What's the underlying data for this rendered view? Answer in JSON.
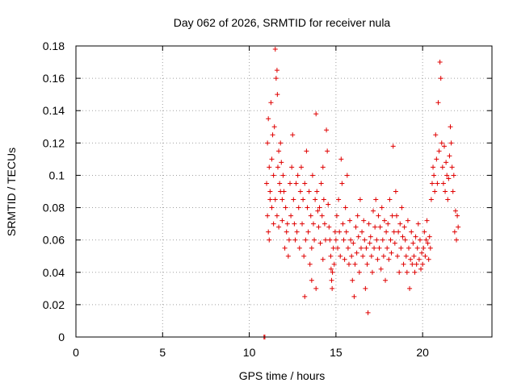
{
  "chart_data": {
    "type": "scatter",
    "title": "Day 062 of 2026, SRMTID for receiver nula",
    "xlabel": "GPS time / hours",
    "ylabel": "SRMTID / TECUs",
    "xlim": [
      0,
      24
    ],
    "ylim": [
      0,
      0.18
    ],
    "xticks": [
      0,
      5,
      10,
      15,
      20
    ],
    "yticks": [
      0,
      0.02,
      0.04,
      0.06,
      0.08,
      0.1,
      0.12,
      0.14,
      0.16,
      0.18
    ],
    "xtick_labels": [
      "0",
      "5",
      "10",
      "15",
      "20"
    ],
    "ytick_labels": [
      "0",
      "0.02",
      "0.04",
      "0.06",
      "0.08",
      "0.1",
      "0.12",
      "0.14",
      "0.16",
      "0.18"
    ],
    "grid": true,
    "marker": "+",
    "series": [
      {
        "name": "SRMTID",
        "color": "#e00000",
        "points": [
          [
            10.85,
            0.0
          ],
          [
            10.9,
            0.0
          ],
          [
            11.0,
            0.095
          ],
          [
            11.05,
            0.12
          ],
          [
            11.1,
            0.135
          ],
          [
            11.15,
            0.105
          ],
          [
            11.2,
            0.085
          ],
          [
            11.25,
            0.145
          ],
          [
            11.3,
            0.11
          ],
          [
            11.35,
            0.125
          ],
          [
            11.4,
            0.1
          ],
          [
            11.45,
            0.13
          ],
          [
            11.5,
            0.178
          ],
          [
            11.55,
            0.16
          ],
          [
            11.6,
            0.165
          ],
          [
            11.62,
            0.15
          ],
          [
            11.65,
            0.105
          ],
          [
            11.7,
            0.115
          ],
          [
            11.75,
            0.095
          ],
          [
            11.8,
            0.12
          ],
          [
            11.85,
            0.108
          ],
          [
            11.9,
            0.085
          ],
          [
            11.95,
            0.1
          ],
          [
            11.05,
            0.075
          ],
          [
            11.1,
            0.065
          ],
          [
            11.15,
            0.06
          ],
          [
            11.2,
            0.09
          ],
          [
            11.3,
            0.08
          ],
          [
            11.4,
            0.07
          ],
          [
            11.5,
            0.085
          ],
          [
            11.6,
            0.075
          ],
          [
            11.7,
            0.068
          ],
          [
            11.8,
            0.09
          ],
          [
            11.9,
            0.072
          ],
          [
            12.0,
            0.09
          ],
          [
            12.05,
            0.055
          ],
          [
            12.1,
            0.08
          ],
          [
            12.15,
            0.065
          ],
          [
            12.2,
            0.07
          ],
          [
            12.25,
            0.05
          ],
          [
            12.3,
            0.06
          ],
          [
            12.35,
            0.095
          ],
          [
            12.4,
            0.075
          ],
          [
            12.45,
            0.105
          ],
          [
            12.5,
            0.125
          ],
          [
            12.55,
            0.085
          ],
          [
            12.6,
            0.07
          ],
          [
            12.65,
            0.06
          ],
          [
            12.7,
            0.095
          ],
          [
            12.75,
            0.065
          ],
          [
            12.8,
            0.1
          ],
          [
            12.85,
            0.08
          ],
          [
            12.9,
            0.055
          ],
          [
            12.95,
            0.09
          ],
          [
            13.0,
            0.105
          ],
          [
            13.05,
            0.07
          ],
          [
            13.1,
            0.085
          ],
          [
            13.15,
            0.05
          ],
          [
            13.2,
            0.095
          ],
          [
            13.25,
            0.06
          ],
          [
            13.3,
            0.115
          ],
          [
            13.35,
            0.08
          ],
          [
            13.4,
            0.065
          ],
          [
            13.45,
            0.09
          ],
          [
            13.5,
            0.045
          ],
          [
            13.55,
            0.075
          ],
          [
            13.6,
            0.055
          ],
          [
            13.65,
            0.1
          ],
          [
            13.7,
            0.07
          ],
          [
            13.75,
            0.06
          ],
          [
            13.8,
            0.085
          ],
          [
            13.85,
            0.138
          ],
          [
            13.9,
            0.09
          ],
          [
            13.95,
            0.078
          ],
          [
            14.0,
            0.068
          ],
          [
            14.05,
            0.08
          ],
          [
            14.1,
            0.058
          ],
          [
            14.15,
            0.095
          ],
          [
            14.2,
            0.075
          ],
          [
            14.25,
            0.105
          ],
          [
            14.3,
            0.085
          ],
          [
            14.35,
            0.07
          ],
          [
            14.4,
            0.06
          ],
          [
            14.45,
            0.128
          ],
          [
            14.5,
            0.115
          ],
          [
            14.55,
            0.082
          ],
          [
            14.6,
            0.068
          ],
          [
            14.65,
            0.06
          ],
          [
            14.7,
            0.05
          ],
          [
            14.72,
            0.042
          ],
          [
            14.75,
            0.035
          ],
          [
            14.78,
            0.03
          ],
          [
            14.8,
            0.04
          ],
          [
            14.85,
            0.055
          ],
          [
            14.9,
            0.045
          ],
          [
            14.95,
            0.065
          ],
          [
            13.6,
            0.035
          ],
          [
            13.2,
            0.025
          ],
          [
            13.85,
            0.03
          ],
          [
            14.25,
            0.048
          ],
          [
            15.0,
            0.06
          ],
          [
            15.05,
            0.075
          ],
          [
            15.1,
            0.055
          ],
          [
            15.15,
            0.085
          ],
          [
            15.2,
            0.065
          ],
          [
            15.25,
            0.05
          ],
          [
            15.3,
            0.11
          ],
          [
            15.35,
            0.095
          ],
          [
            15.4,
            0.07
          ],
          [
            15.45,
            0.06
          ],
          [
            15.5,
            0.048
          ],
          [
            15.55,
            0.08
          ],
          [
            15.6,
            0.065
          ],
          [
            15.65,
            0.1
          ],
          [
            15.7,
            0.055
          ],
          [
            15.75,
            0.045
          ],
          [
            15.8,
            0.072
          ],
          [
            15.85,
            0.06
          ],
          [
            15.9,
            0.05
          ],
          [
            15.95,
            0.035
          ],
          [
            16.0,
            0.058
          ],
          [
            16.05,
            0.025
          ],
          [
            16.1,
            0.045
          ],
          [
            16.15,
            0.068
          ],
          [
            16.2,
            0.052
          ],
          [
            16.25,
            0.075
          ],
          [
            16.3,
            0.062
          ],
          [
            16.35,
            0.04
          ],
          [
            16.4,
            0.085
          ],
          [
            16.45,
            0.055
          ],
          [
            16.5,
            0.065
          ],
          [
            16.55,
            0.05
          ],
          [
            16.6,
            0.072
          ],
          [
            16.65,
            0.06
          ],
          [
            16.7,
            0.03
          ],
          [
            16.75,
            0.055
          ],
          [
            16.8,
            0.045
          ],
          [
            16.85,
            0.015
          ],
          [
            16.9,
            0.07
          ],
          [
            16.95,
            0.058
          ],
          [
            17.0,
            0.062
          ],
          [
            17.05,
            0.05
          ],
          [
            17.1,
            0.04
          ],
          [
            17.15,
            0.078
          ],
          [
            17.2,
            0.055
          ],
          [
            17.25,
            0.068
          ],
          [
            17.3,
            0.085
          ],
          [
            17.35,
            0.06
          ],
          [
            17.4,
            0.048
          ],
          [
            17.45,
            0.075
          ],
          [
            17.5,
            0.055
          ],
          [
            17.55,
            0.068
          ],
          [
            17.6,
            0.042
          ],
          [
            17.65,
            0.08
          ],
          [
            17.7,
            0.06
          ],
          [
            17.75,
            0.05
          ],
          [
            17.8,
            0.072
          ],
          [
            17.85,
            0.035
          ],
          [
            17.9,
            0.065
          ],
          [
            17.95,
            0.055
          ],
          [
            18.0,
            0.07
          ],
          [
            18.05,
            0.048
          ],
          [
            18.1,
            0.085
          ],
          [
            18.15,
            0.06
          ],
          [
            18.2,
            0.052
          ],
          [
            18.25,
            0.075
          ],
          [
            18.3,
            0.118
          ],
          [
            18.35,
            0.065
          ],
          [
            18.4,
            0.058
          ],
          [
            18.45,
            0.09
          ],
          [
            18.5,
            0.075
          ],
          [
            18.55,
            0.05
          ],
          [
            18.6,
            0.065
          ],
          [
            18.65,
            0.04
          ],
          [
            18.7,
            0.07
          ],
          [
            18.75,
            0.055
          ],
          [
            18.8,
            0.08
          ],
          [
            18.85,
            0.062
          ],
          [
            18.9,
            0.045
          ],
          [
            18.95,
            0.068
          ],
          [
            19.0,
            0.06
          ],
          [
            19.05,
            0.05
          ],
          [
            19.1,
            0.04
          ],
          [
            19.15,
            0.072
          ],
          [
            19.2,
            0.055
          ],
          [
            19.25,
            0.03
          ],
          [
            19.3,
            0.048
          ],
          [
            19.35,
            0.065
          ],
          [
            19.4,
            0.045
          ],
          [
            19.45,
            0.058
          ],
          [
            19.5,
            0.05
          ],
          [
            19.55,
            0.04
          ],
          [
            19.6,
            0.062
          ],
          [
            19.65,
            0.045
          ],
          [
            19.7,
            0.055
          ],
          [
            19.75,
            0.07
          ],
          [
            19.8,
            0.048
          ],
          [
            19.85,
            0.06
          ],
          [
            19.9,
            0.042
          ],
          [
            19.95,
            0.052
          ],
          [
            20.0,
            0.045
          ],
          [
            20.05,
            0.055
          ],
          [
            20.1,
            0.065
          ],
          [
            20.15,
            0.05
          ],
          [
            20.2,
            0.06
          ],
          [
            20.25,
            0.072
          ],
          [
            20.3,
            0.058
          ],
          [
            20.35,
            0.048
          ],
          [
            20.4,
            0.062
          ],
          [
            20.45,
            0.055
          ],
          [
            20.5,
            0.085
          ],
          [
            20.55,
            0.095
          ],
          [
            20.6,
            0.105
          ],
          [
            20.65,
            0.1
          ],
          [
            20.7,
            0.09
          ],
          [
            20.75,
            0.125
          ],
          [
            20.8,
            0.11
          ],
          [
            20.85,
            0.095
          ],
          [
            20.9,
            0.145
          ],
          [
            20.95,
            0.115
          ],
          [
            21.0,
            0.17
          ],
          [
            21.05,
            0.16
          ],
          [
            21.1,
            0.12
          ],
          [
            21.15,
            0.105
          ],
          [
            21.2,
            0.095
          ],
          [
            21.25,
            0.118
          ],
          [
            21.3,
            0.09
          ],
          [
            21.35,
            0.108
          ],
          [
            21.4,
            0.1
          ],
          [
            21.45,
            0.085
          ],
          [
            21.5,
            0.098
          ],
          [
            21.55,
            0.112
          ],
          [
            21.6,
            0.13
          ],
          [
            21.65,
            0.12
          ],
          [
            21.7,
            0.105
          ],
          [
            21.75,
            0.09
          ],
          [
            21.8,
            0.1
          ],
          [
            21.85,
            0.065
          ],
          [
            21.9,
            0.078
          ],
          [
            21.95,
            0.06
          ],
          [
            22.0,
            0.075
          ],
          [
            22.05,
            0.068
          ]
        ]
      }
    ]
  }
}
